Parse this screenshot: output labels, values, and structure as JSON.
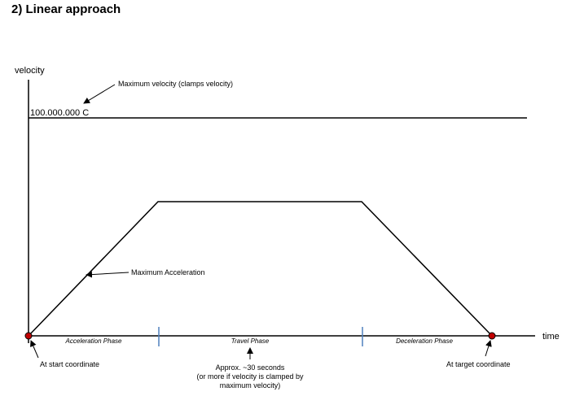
{
  "title": "2) Linear approach",
  "axes": {
    "y_label": "velocity",
    "x_label": "time"
  },
  "max_velocity_value": "100.000.000 C",
  "annotations": {
    "max_velocity": "Maximum velocity (clamps velocity)",
    "max_acceleration": "Maximum Acceleration",
    "start": "At start coordinate",
    "target": "At target coordinate",
    "duration_line1": "Approx. ~30 seconds",
    "duration_line2": "(or more if velocity is clamped by",
    "duration_line3": "maximum velocity)"
  },
  "phases": {
    "acceleration": "Acceleration Phase",
    "travel": "Travel Phase",
    "deceleration": "Deceleration Phase"
  },
  "colors": {
    "line": "#000000",
    "phase_tick": "#4f81bd",
    "endpoint_marker": "#c00000"
  }
}
